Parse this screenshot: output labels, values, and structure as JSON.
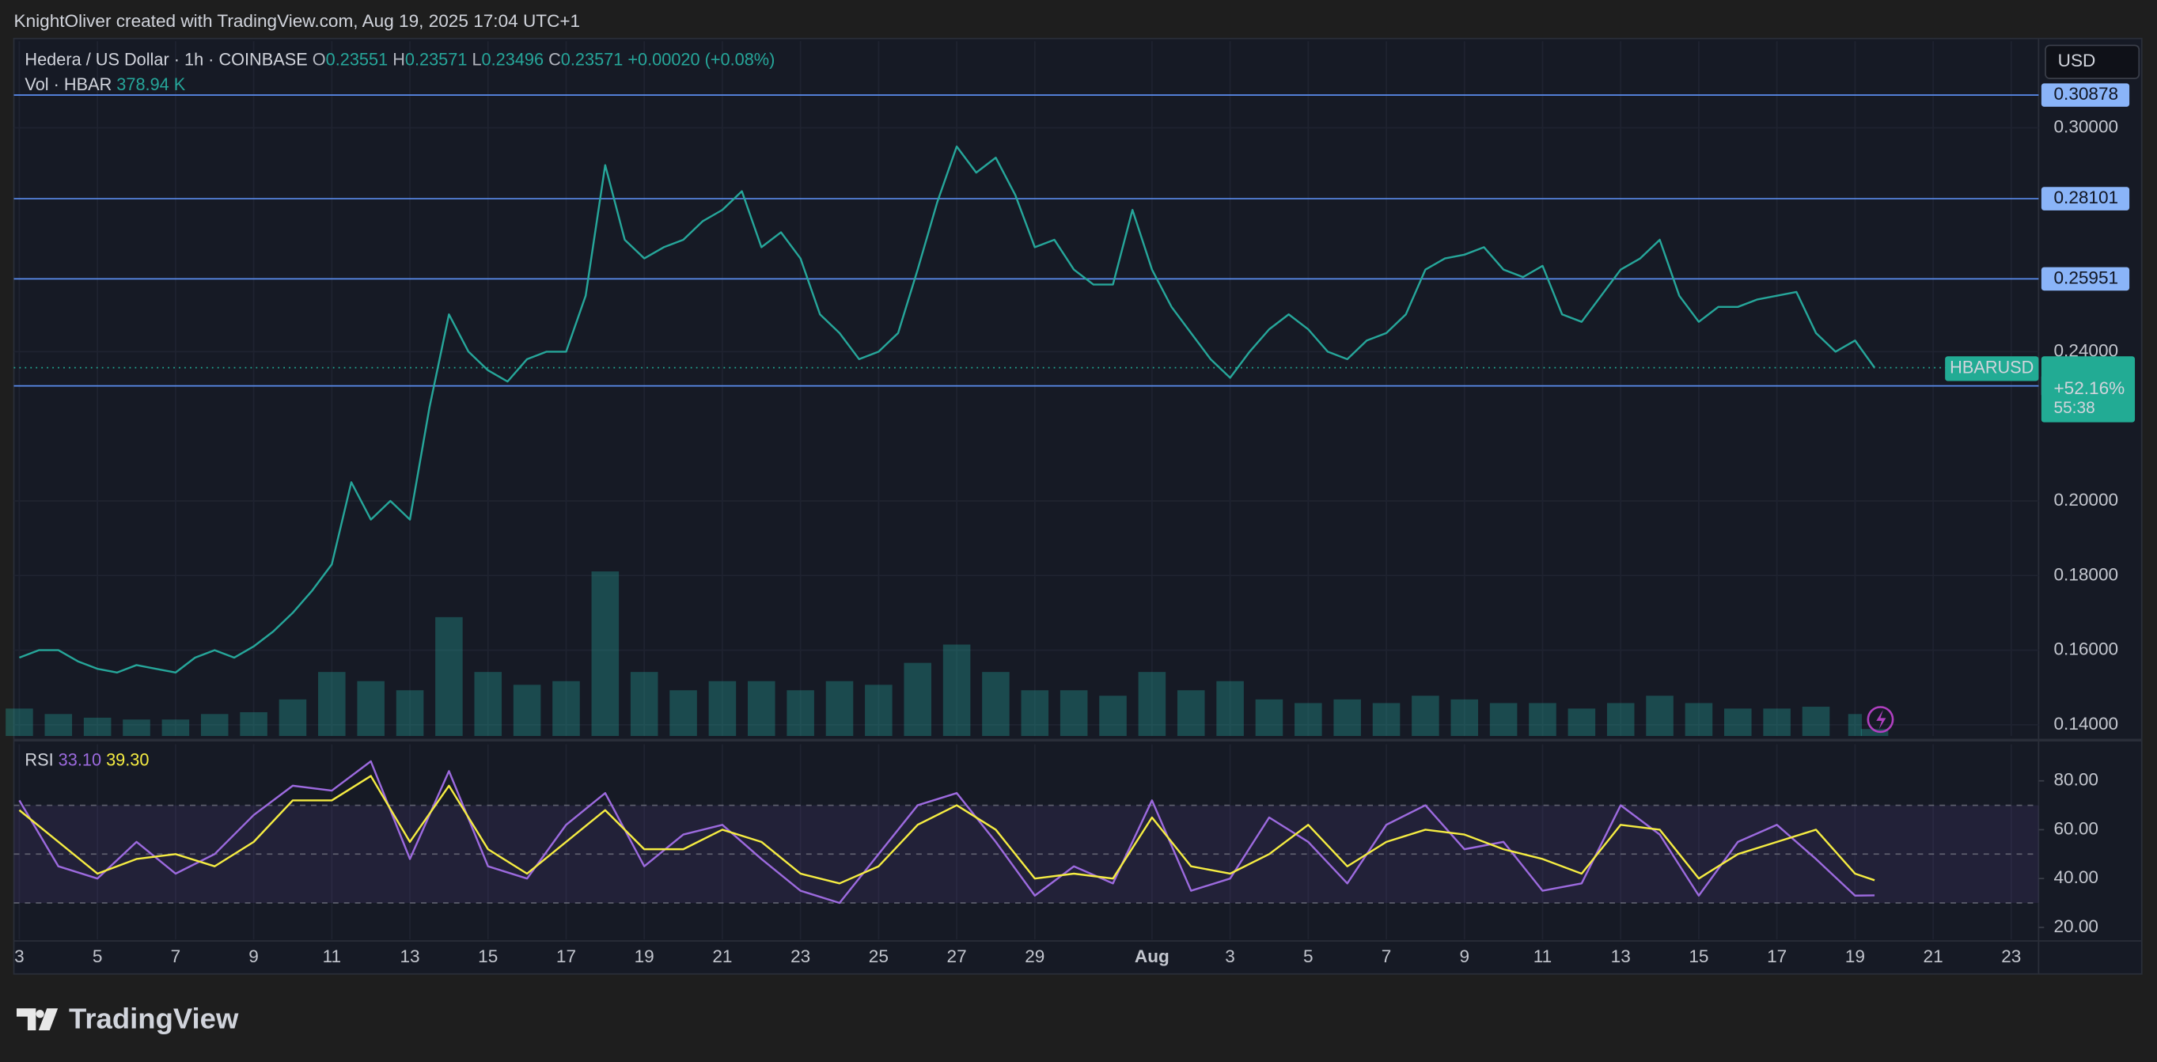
{
  "attribution": "KnightOliver created with TradingView.com, Aug 19, 2025 17:04 UTC+1",
  "brand": "TradingView",
  "currency": "USD",
  "symbol_tag": "HBARUSD",
  "ohlc": [
    {
      "key": "O",
      "value": "0.23551"
    },
    {
      "key": "H",
      "value": "0.23571"
    },
    {
      "key": "L",
      "value": "0.23496"
    },
    {
      "key": "C",
      "value": "0.23571"
    }
  ],
  "change": "+0.00020 (+0.08%)",
  "price_tag": {
    "change": "+52.16%",
    "countdown": "55:38"
  },
  "chart_data": [
    {
      "type": "line",
      "x": [
        3,
        3.5,
        4,
        4.5,
        5,
        5.5,
        6,
        6.5,
        7,
        7.5,
        8,
        8.5,
        9,
        9.5,
        10,
        10.5,
        11,
        11.5,
        12,
        12.5,
        13,
        13.5,
        14,
        14.5,
        15,
        15.5,
        16,
        16.5,
        17,
        17.5,
        18,
        18.5,
        19,
        19.5,
        20,
        20.5,
        21,
        21.5,
        22,
        22.5,
        23,
        23.5,
        24,
        24.5,
        25,
        25.5,
        26,
        26.5,
        27,
        27.5,
        28,
        28.5,
        29,
        29.5,
        30,
        30.5,
        31,
        31.5,
        32,
        32.5,
        33,
        33.5,
        34,
        34.5,
        35,
        35.5,
        36,
        36.5,
        37,
        37.5,
        38,
        38.5,
        39,
        39.5,
        40,
        40.5,
        41,
        41.5,
        42,
        42.5,
        43,
        43.5,
        44,
        44.5,
        45,
        45.5,
        46,
        46.5,
        47,
        47.5,
        48,
        48.5,
        49,
        49.5,
        50,
        50.5
      ],
      "xlim": [
        2.86,
        54.7
      ],
      "xticks": [
        3,
        5,
        7,
        9,
        11,
        13,
        15,
        17,
        19,
        21,
        23,
        25,
        27,
        29,
        {
          "value": 32,
          "label": "Aug"
        },
        {
          "value": 34,
          "label": "3"
        },
        {
          "value": 36,
          "label": "5"
        },
        {
          "value": 38,
          "label": "7"
        },
        {
          "value": 40,
          "label": "9"
        },
        {
          "value": 42,
          "label": "11"
        },
        {
          "value": 44,
          "label": "13"
        },
        {
          "value": 46,
          "label": "15"
        },
        {
          "value": 48,
          "label": "17"
        },
        {
          "value": 50,
          "label": "19"
        },
        {
          "value": 52,
          "label": "21"
        },
        {
          "value": 54,
          "label": "23"
        }
      ],
      "ylim": [
        0.137,
        0.3232
      ],
      "yticks": [
        {
          "value": 0.14,
          "label": "0.14000"
        },
        {
          "value": 0.16,
          "label": "0.16000"
        },
        {
          "value": 0.18,
          "label": "0.18000"
        },
        {
          "value": 0.2,
          "label": "0.20000"
        },
        {
          "value": 0.24,
          "label": "0.24000"
        },
        {
          "value": 0.3,
          "label": "0.30000"
        }
      ],
      "grid": true,
      "hlines": [
        0.30878,
        0.28101,
        0.25951,
        0.23084
      ],
      "hline_color": "#5b8def",
      "last_price": 0.23571,
      "series": [
        {
          "name": "Hedera / US Dollar · 1h · COINBASE",
          "color": "#26a69a",
          "values": [
            0.158,
            0.16,
            0.16,
            0.157,
            0.155,
            0.154,
            0.156,
            0.155,
            0.154,
            0.158,
            0.16,
            0.158,
            0.161,
            0.165,
            0.17,
            0.176,
            0.183,
            0.205,
            0.195,
            0.2,
            0.195,
            0.225,
            0.25,
            0.24,
            0.235,
            0.232,
            0.238,
            0.24,
            0.24,
            0.255,
            0.29,
            0.27,
            0.265,
            0.268,
            0.27,
            0.275,
            0.278,
            0.283,
            0.268,
            0.272,
            0.265,
            0.25,
            0.245,
            0.238,
            0.24,
            0.245,
            0.262,
            0.28,
            0.295,
            0.288,
            0.292,
            0.282,
            0.268,
            0.27,
            0.262,
            0.258,
            0.258,
            0.278,
            0.262,
            0.252,
            0.245,
            0.238,
            0.233,
            0.24,
            0.246,
            0.25,
            0.246,
            0.24,
            0.238,
            0.243,
            0.245,
            0.25,
            0.262,
            0.265,
            0.266,
            0.268,
            0.262,
            0.26,
            0.263,
            0.25,
            0.248,
            0.255,
            0.262,
            0.265,
            0.27,
            0.255,
            0.248,
            0.252,
            0.252,
            0.254,
            0.255,
            0.256,
            0.245,
            0.24,
            0.243,
            0.23571
          ]
        }
      ]
    },
    {
      "type": "bar",
      "x": [
        3,
        4,
        5,
        6,
        7,
        8,
        9,
        10,
        11,
        12,
        13,
        14,
        15,
        16,
        17,
        18,
        19,
        20,
        21,
        22,
        23,
        24,
        25,
        26,
        27,
        28,
        29,
        30,
        31,
        32,
        33,
        34,
        35,
        36,
        37,
        38,
        39,
        40,
        41,
        42,
        43,
        44,
        45,
        46,
        47,
        48,
        49,
        50,
        50.5
      ],
      "ylim": [
        0,
        38000
      ],
      "series": [
        {
          "name": "Vol · HBAR",
          "color": "#26a69a",
          "last_label": "378.94 K",
          "values": [
            1500,
            1200,
            1000,
            900,
            900,
            1200,
            1300,
            2000,
            3500,
            3000,
            2500,
            6500,
            3500,
            2800,
            3000,
            9000,
            3500,
            2500,
            3000,
            3000,
            2500,
            3000,
            2800,
            4000,
            5000,
            3500,
            2500,
            2500,
            2200,
            3500,
            2500,
            3000,
            2000,
            1800,
            2000,
            1800,
            2200,
            2000,
            1800,
            1800,
            1500,
            1800,
            2200,
            1800,
            1500,
            1500,
            1600,
            1200,
            378.94
          ]
        }
      ]
    },
    {
      "type": "line",
      "x": [
        3,
        4,
        5,
        6,
        7,
        8,
        9,
        10,
        11,
        12,
        13,
        14,
        15,
        16,
        17,
        18,
        19,
        20,
        21,
        22,
        23,
        24,
        25,
        26,
        27,
        28,
        29,
        30,
        31,
        32,
        33,
        34,
        35,
        36,
        37,
        38,
        39,
        40,
        41,
        42,
        43,
        44,
        45,
        46,
        47,
        48,
        49,
        50,
        50.5
      ],
      "ylim": [
        15,
        95
      ],
      "yticks": [
        {
          "value": 20,
          "label": "20.00"
        },
        {
          "value": 40,
          "label": "40.00"
        },
        {
          "value": 60,
          "label": "60.00"
        },
        {
          "value": 80,
          "label": "80.00"
        }
      ],
      "bands": [
        30,
        50,
        70
      ],
      "series": [
        {
          "name": "RSI",
          "color": "#9c6ade",
          "last_label": "33.10",
          "values": [
            72,
            45,
            40,
            55,
            42,
            50,
            66,
            78,
            76,
            88,
            48,
            84,
            45,
            40,
            62,
            75,
            45,
            58,
            62,
            48,
            35,
            30,
            50,
            70,
            75,
            55,
            33,
            45,
            38,
            72,
            35,
            40,
            65,
            55,
            38,
            62,
            70,
            52,
            55,
            35,
            38,
            70,
            58,
            33,
            55,
            62,
            48,
            33,
            33.1
          ]
        },
        {
          "color": "#f5ec42",
          "last_label": "39.30",
          "values": [
            68,
            55,
            42,
            48,
            50,
            45,
            55,
            72,
            72,
            82,
            55,
            78,
            52,
            42,
            55,
            68,
            52,
            52,
            60,
            55,
            42,
            38,
            45,
            62,
            70,
            60,
            40,
            42,
            40,
            65,
            45,
            42,
            50,
            62,
            45,
            55,
            60,
            58,
            52,
            48,
            42,
            62,
            60,
            40,
            50,
            55,
            60,
            42,
            39.3
          ]
        }
      ]
    }
  ]
}
